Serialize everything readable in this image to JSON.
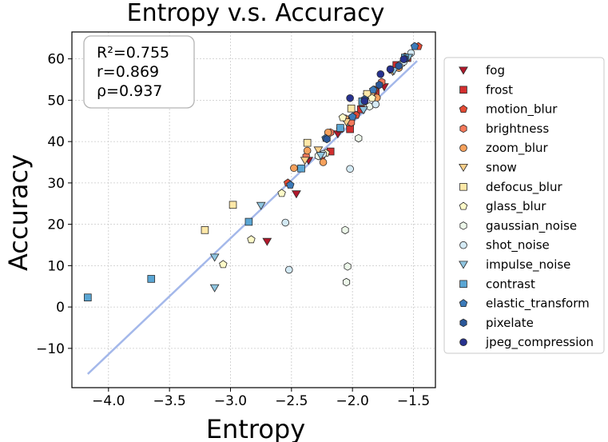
{
  "chart_data": {
    "type": "scatter",
    "title": "Entropy  v.s.  Accuracy",
    "xlabel": "Entropy",
    "ylabel": "Accuracy",
    "xlim": [
      -4.3,
      -1.32
    ],
    "ylim": [
      -19.5,
      66.5
    ],
    "xticks": [
      -4.0,
      -3.5,
      -3.0,
      -2.5,
      -2.0,
      -1.5
    ],
    "yticks": [
      -10,
      0,
      10,
      20,
      30,
      40,
      50,
      60
    ],
    "xtick_labels": [
      "−4.0",
      "−3.5",
      "−3.0",
      "−2.5",
      "−2.0",
      "−1.5"
    ],
    "ytick_labels": [
      "−10",
      "0",
      "10",
      "20",
      "30",
      "40",
      "50",
      "60"
    ],
    "grid": true,
    "stats": [
      "R²=0.755",
      "r=0.869",
      "ρ=0.937"
    ],
    "fit_line": {
      "x": [
        -4.17,
        -1.47
      ],
      "y": [
        -16.2,
        59.5
      ],
      "color": "#a4b8ea"
    },
    "legend_position": "right",
    "series": [
      {
        "name": "fog",
        "marker": "triangle-down",
        "color": "#b2182b",
        "points": [
          [
            -2.7,
            15.8
          ],
          [
            -2.46,
            27.3
          ],
          [
            -2.36,
            35.4
          ],
          [
            -2.12,
            41.8
          ],
          [
            -2.02,
            45.0
          ],
          [
            -1.88,
            50.8
          ],
          [
            -1.74,
            53.2
          ]
        ]
      },
      {
        "name": "frost",
        "marker": "square",
        "color": "#d32f2f",
        "points": [
          [
            -2.18,
            37.6
          ],
          [
            -2.02,
            43.0
          ],
          [
            -1.93,
            47.8
          ],
          [
            -1.81,
            52.0
          ],
          [
            -1.64,
            58.5
          ],
          [
            -1.55,
            60.2
          ]
        ]
      },
      {
        "name": "motion_blur",
        "marker": "pentagon",
        "color": "#e34a33",
        "points": [
          [
            -2.53,
            30.0
          ],
          [
            -2.25,
            36.5
          ],
          [
            -2.1,
            43.0
          ],
          [
            -1.97,
            46.4
          ],
          [
            -1.82,
            52.5
          ],
          [
            -1.68,
            57.3
          ],
          [
            -1.46,
            63.0
          ]
        ]
      },
      {
        "name": "brightness",
        "marker": "hexagon",
        "color": "#f4785a",
        "points": [
          [
            -2.38,
            36.4
          ],
          [
            -2.18,
            42.2
          ],
          [
            -2.01,
            44.6
          ],
          [
            -1.9,
            49.9
          ],
          [
            -1.76,
            54.4
          ],
          [
            -1.57,
            60.5
          ]
        ]
      },
      {
        "name": "zoom_blur",
        "marker": "circle",
        "color": "#f6a15c",
        "points": [
          [
            -2.48,
            33.6
          ],
          [
            -2.37,
            37.8
          ],
          [
            -2.2,
            42.2
          ],
          [
            -2.24,
            35.0
          ],
          [
            -2.06,
            45.6
          ],
          [
            -1.8,
            50.6
          ],
          [
            -1.62,
            57.8
          ]
        ]
      },
      {
        "name": "snow",
        "marker": "triangle-down",
        "color": "#fdd08a",
        "points": [
          [
            -2.39,
            35.4
          ],
          [
            -2.28,
            37.9
          ],
          [
            -2.05,
            44.7
          ],
          [
            -1.84,
            51.3
          ],
          [
            -1.67,
            56.9
          ]
        ]
      },
      {
        "name": "defocus_blur",
        "marker": "square",
        "color": "#fee8a8",
        "points": [
          [
            -3.21,
            18.6
          ],
          [
            -2.98,
            24.7
          ],
          [
            -2.37,
            39.7
          ],
          [
            -2.01,
            48.0
          ],
          [
            -1.88,
            51.5
          ]
        ]
      },
      {
        "name": "glass_blur",
        "marker": "pentagon",
        "color": "#fffbc8",
        "points": [
          [
            -3.06,
            10.3
          ],
          [
            -2.83,
            16.3
          ],
          [
            -2.58,
            27.5
          ],
          [
            -2.22,
            37.2
          ],
          [
            -2.08,
            45.8
          ],
          [
            -1.84,
            50.5
          ]
        ]
      },
      {
        "name": "gaussian_noise",
        "marker": "hexagon",
        "color": "#edf8ea",
        "points": [
          [
            -2.06,
            18.6
          ],
          [
            -2.04,
            9.8
          ],
          [
            -2.05,
            6.0
          ],
          [
            -1.95,
            40.8
          ],
          [
            -2.28,
            36.5
          ],
          [
            -1.86,
            48.5
          ],
          [
            -1.6,
            58.8
          ]
        ]
      },
      {
        "name": "shot_noise",
        "marker": "circle",
        "color": "#d4eaf5",
        "points": [
          [
            -2.52,
            9.0
          ],
          [
            -2.55,
            20.4
          ],
          [
            -2.02,
            33.4
          ],
          [
            -2.24,
            37.0
          ],
          [
            -1.81,
            49.0
          ],
          [
            -1.58,
            59.3
          ],
          [
            -1.52,
            61.4
          ]
        ]
      },
      {
        "name": "impulse_noise",
        "marker": "triangle-down",
        "color": "#8fc5e0",
        "points": [
          [
            -3.13,
            4.6
          ],
          [
            -3.13,
            12.0
          ],
          [
            -2.75,
            24.5
          ],
          [
            -2.26,
            36.6
          ],
          [
            -1.91,
            47.6
          ],
          [
            -1.66,
            57.1
          ],
          [
            -1.54,
            60.3
          ]
        ]
      },
      {
        "name": "contrast",
        "marker": "square",
        "color": "#5aa6d4",
        "points": [
          [
            -4.17,
            2.3
          ],
          [
            -3.65,
            6.8
          ],
          [
            -2.85,
            20.6
          ],
          [
            -2.42,
            33.5
          ],
          [
            -2.1,
            43.3
          ],
          [
            -1.92,
            49.7
          ],
          [
            -1.57,
            60.3
          ]
        ]
      },
      {
        "name": "elastic_transform",
        "marker": "pentagon",
        "color": "#3b7ab9",
        "points": [
          [
            -2.51,
            29.5
          ],
          [
            -2.22,
            40.8
          ],
          [
            -2.0,
            46.0
          ],
          [
            -1.83,
            52.5
          ],
          [
            -1.49,
            63.0
          ]
        ]
      },
      {
        "name": "pixelate",
        "marker": "hexagon",
        "color": "#2a5799",
        "points": [
          [
            -2.21,
            40.6
          ],
          [
            -1.9,
            50.2
          ],
          [
            -1.78,
            53.7
          ],
          [
            -1.62,
            58.3
          ],
          [
            -1.57,
            60.0
          ]
        ]
      },
      {
        "name": "jpeg_compression",
        "marker": "circle",
        "color": "#27328f",
        "points": [
          [
            -2.02,
            50.5
          ],
          [
            -1.9,
            49.8
          ],
          [
            -1.77,
            56.3
          ],
          [
            -1.69,
            57.5
          ],
          [
            -1.58,
            59.9
          ]
        ]
      }
    ]
  }
}
